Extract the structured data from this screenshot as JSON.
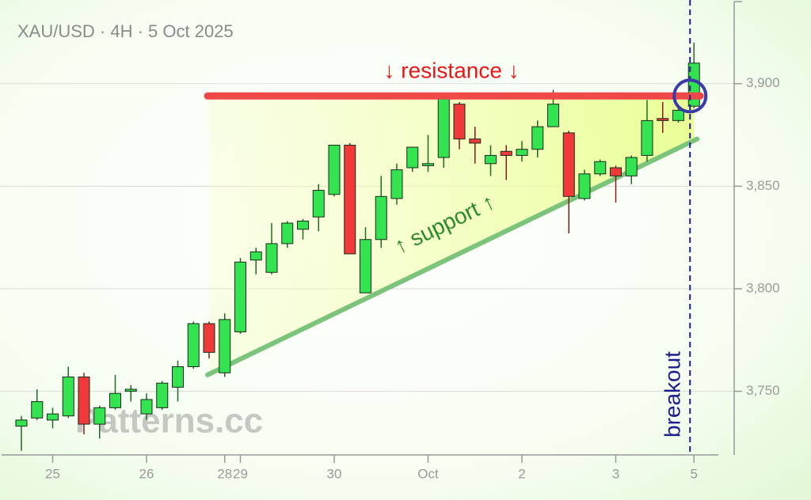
{
  "chart_data": {
    "type": "candlestick",
    "title": "XAU/USD · 4H · 5 Oct 2025",
    "watermark": "Patterns.cc",
    "categories": [
      null,
      null,
      "25",
      null,
      null,
      null,
      null,
      null,
      "26",
      null,
      null,
      null,
      null,
      "28",
      "29",
      null,
      null,
      null,
      null,
      null,
      "30",
      null,
      null,
      null,
      null,
      null,
      "Oct",
      null,
      null,
      null,
      null,
      null,
      "2",
      null,
      null,
      null,
      null,
      null,
      "3",
      null,
      null,
      null,
      null,
      "5"
    ],
    "open": [
      3733,
      3737,
      3736,
      3738,
      3757,
      3734,
      3742,
      3750,
      3739,
      3742,
      3752,
      3762,
      3783,
      3759,
      3779,
      3814,
      3808,
      3822,
      3829,
      3835,
      3846,
      3870,
      3798,
      3824,
      3844,
      3859,
      3860,
      3864,
      3890,
      3873,
      3861,
      3867,
      3865,
      3868,
      3879,
      3876,
      3844,
      3856,
      3859,
      3855,
      3865,
      3883,
      3882,
      3889
    ],
    "high": [
      3738,
      3751,
      3742,
      3762,
      3759,
      3743,
      3758,
      3753,
      3749,
      3755,
      3765,
      3784,
      3784,
      3788,
      3815,
      3820,
      3832,
      3833,
      3834,
      3851,
      3870,
      3871,
      3830,
      3855,
      3861,
      3869,
      3875,
      3895,
      3891,
      3879,
      3870,
      3870,
      3872,
      3882,
      3897,
      3877,
      3858,
      3863,
      3860,
      3865,
      3892,
      3891,
      3888,
      3920
    ],
    "low": [
      3721,
      3736,
      3732,
      3737,
      3729,
      3727,
      3741,
      3745,
      3736,
      3741,
      3745,
      3761,
      3766,
      3757,
      3778,
      3807,
      3807,
      3820,
      3824,
      3828,
      3845,
      3817,
      3798,
      3820,
      3841,
      3857,
      3857,
      3859,
      3868,
      3861,
      3855,
      3853,
      3862,
      3864,
      3879,
      3827,
      3843,
      3855,
      3842,
      3851,
      3862,
      3876,
      3881,
      3888
    ],
    "close": [
      3736,
      3745,
      3739,
      3757,
      3734,
      3742,
      3749,
      3751,
      3746,
      3754,
      3762,
      3783,
      3769,
      3785,
      3813,
      3818,
      3822,
      3832,
      3833,
      3848,
      3870,
      3817,
      3824,
      3845,
      3858,
      3869,
      3861,
      3894,
      3873,
      3871,
      3865,
      3865,
      3868,
      3879,
      3890,
      3845,
      3856,
      3862,
      3855,
      3864,
      3882,
      3882,
      3887,
      3910
    ],
    "up_color": "#33e34f",
    "down_color": "#f03a3a",
    "ylim": [
      3719,
      3940
    ],
    "yticks": [
      {
        "value": 3750,
        "label": "3,750"
      },
      {
        "value": 3800,
        "label": "3,800"
      },
      {
        "value": 3850,
        "label": "3,850"
      },
      {
        "value": 3900,
        "label": "3,900"
      }
    ],
    "grid": true,
    "resistance": {
      "label": "↓ resistance ↓",
      "value": 3894,
      "start": 12,
      "end": 43,
      "color": "#f04848"
    },
    "support": {
      "label": "↑ support ↑",
      "start_value": 3758,
      "end_value": 3873,
      "start": 12,
      "end": 43,
      "color": "#7cc47c"
    },
    "breakout": {
      "label": "breakout",
      "index": 43,
      "color": "#1c1c8c"
    }
  }
}
